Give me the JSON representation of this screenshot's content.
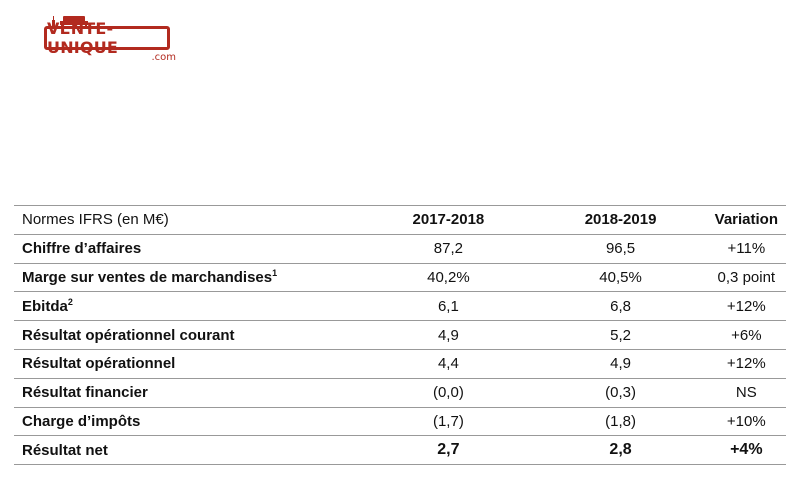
{
  "logo": {
    "brand": "VENTE-UNIQUE",
    "suffix": ".com",
    "color": "#b22a1f",
    "icon": "sofa-icon"
  },
  "table": {
    "headers": [
      "Normes IFRS (en M€)",
      "2017-2018",
      "2018-2019",
      "Variation"
    ],
    "rows": [
      {
        "label": "Chiffre d’affaires",
        "sup": "",
        "a": "87,2",
        "b": "96,5",
        "var": "+11%"
      },
      {
        "label": "Marge sur ventes de marchandises",
        "sup": "1",
        "a": "40,2%",
        "b": "40,5%",
        "var": "0,3 point"
      },
      {
        "label": "Ebitda",
        "sup": "2",
        "a": "6,1",
        "b": "6,8",
        "var": "+12%"
      },
      {
        "label": "Résultat opérationnel courant",
        "sup": "",
        "a": "4,9",
        "b": "5,2",
        "var": "+6%"
      },
      {
        "label": "Résultat opérationnel",
        "sup": "",
        "a": "4,4",
        "b": "4,9",
        "var": "+12%"
      },
      {
        "label": "Résultat financier",
        "sup": "",
        "a": "(0,0)",
        "b": "(0,3)",
        "var": "NS"
      },
      {
        "label": "Charge d’impôts",
        "sup": "",
        "a": "(1,7)",
        "b": "(1,8)",
        "var": "+10%"
      },
      {
        "label": "Résultat net",
        "sup": "",
        "a": "2,7",
        "b": "2,8",
        "var": "+4%",
        "total": true
      }
    ]
  }
}
